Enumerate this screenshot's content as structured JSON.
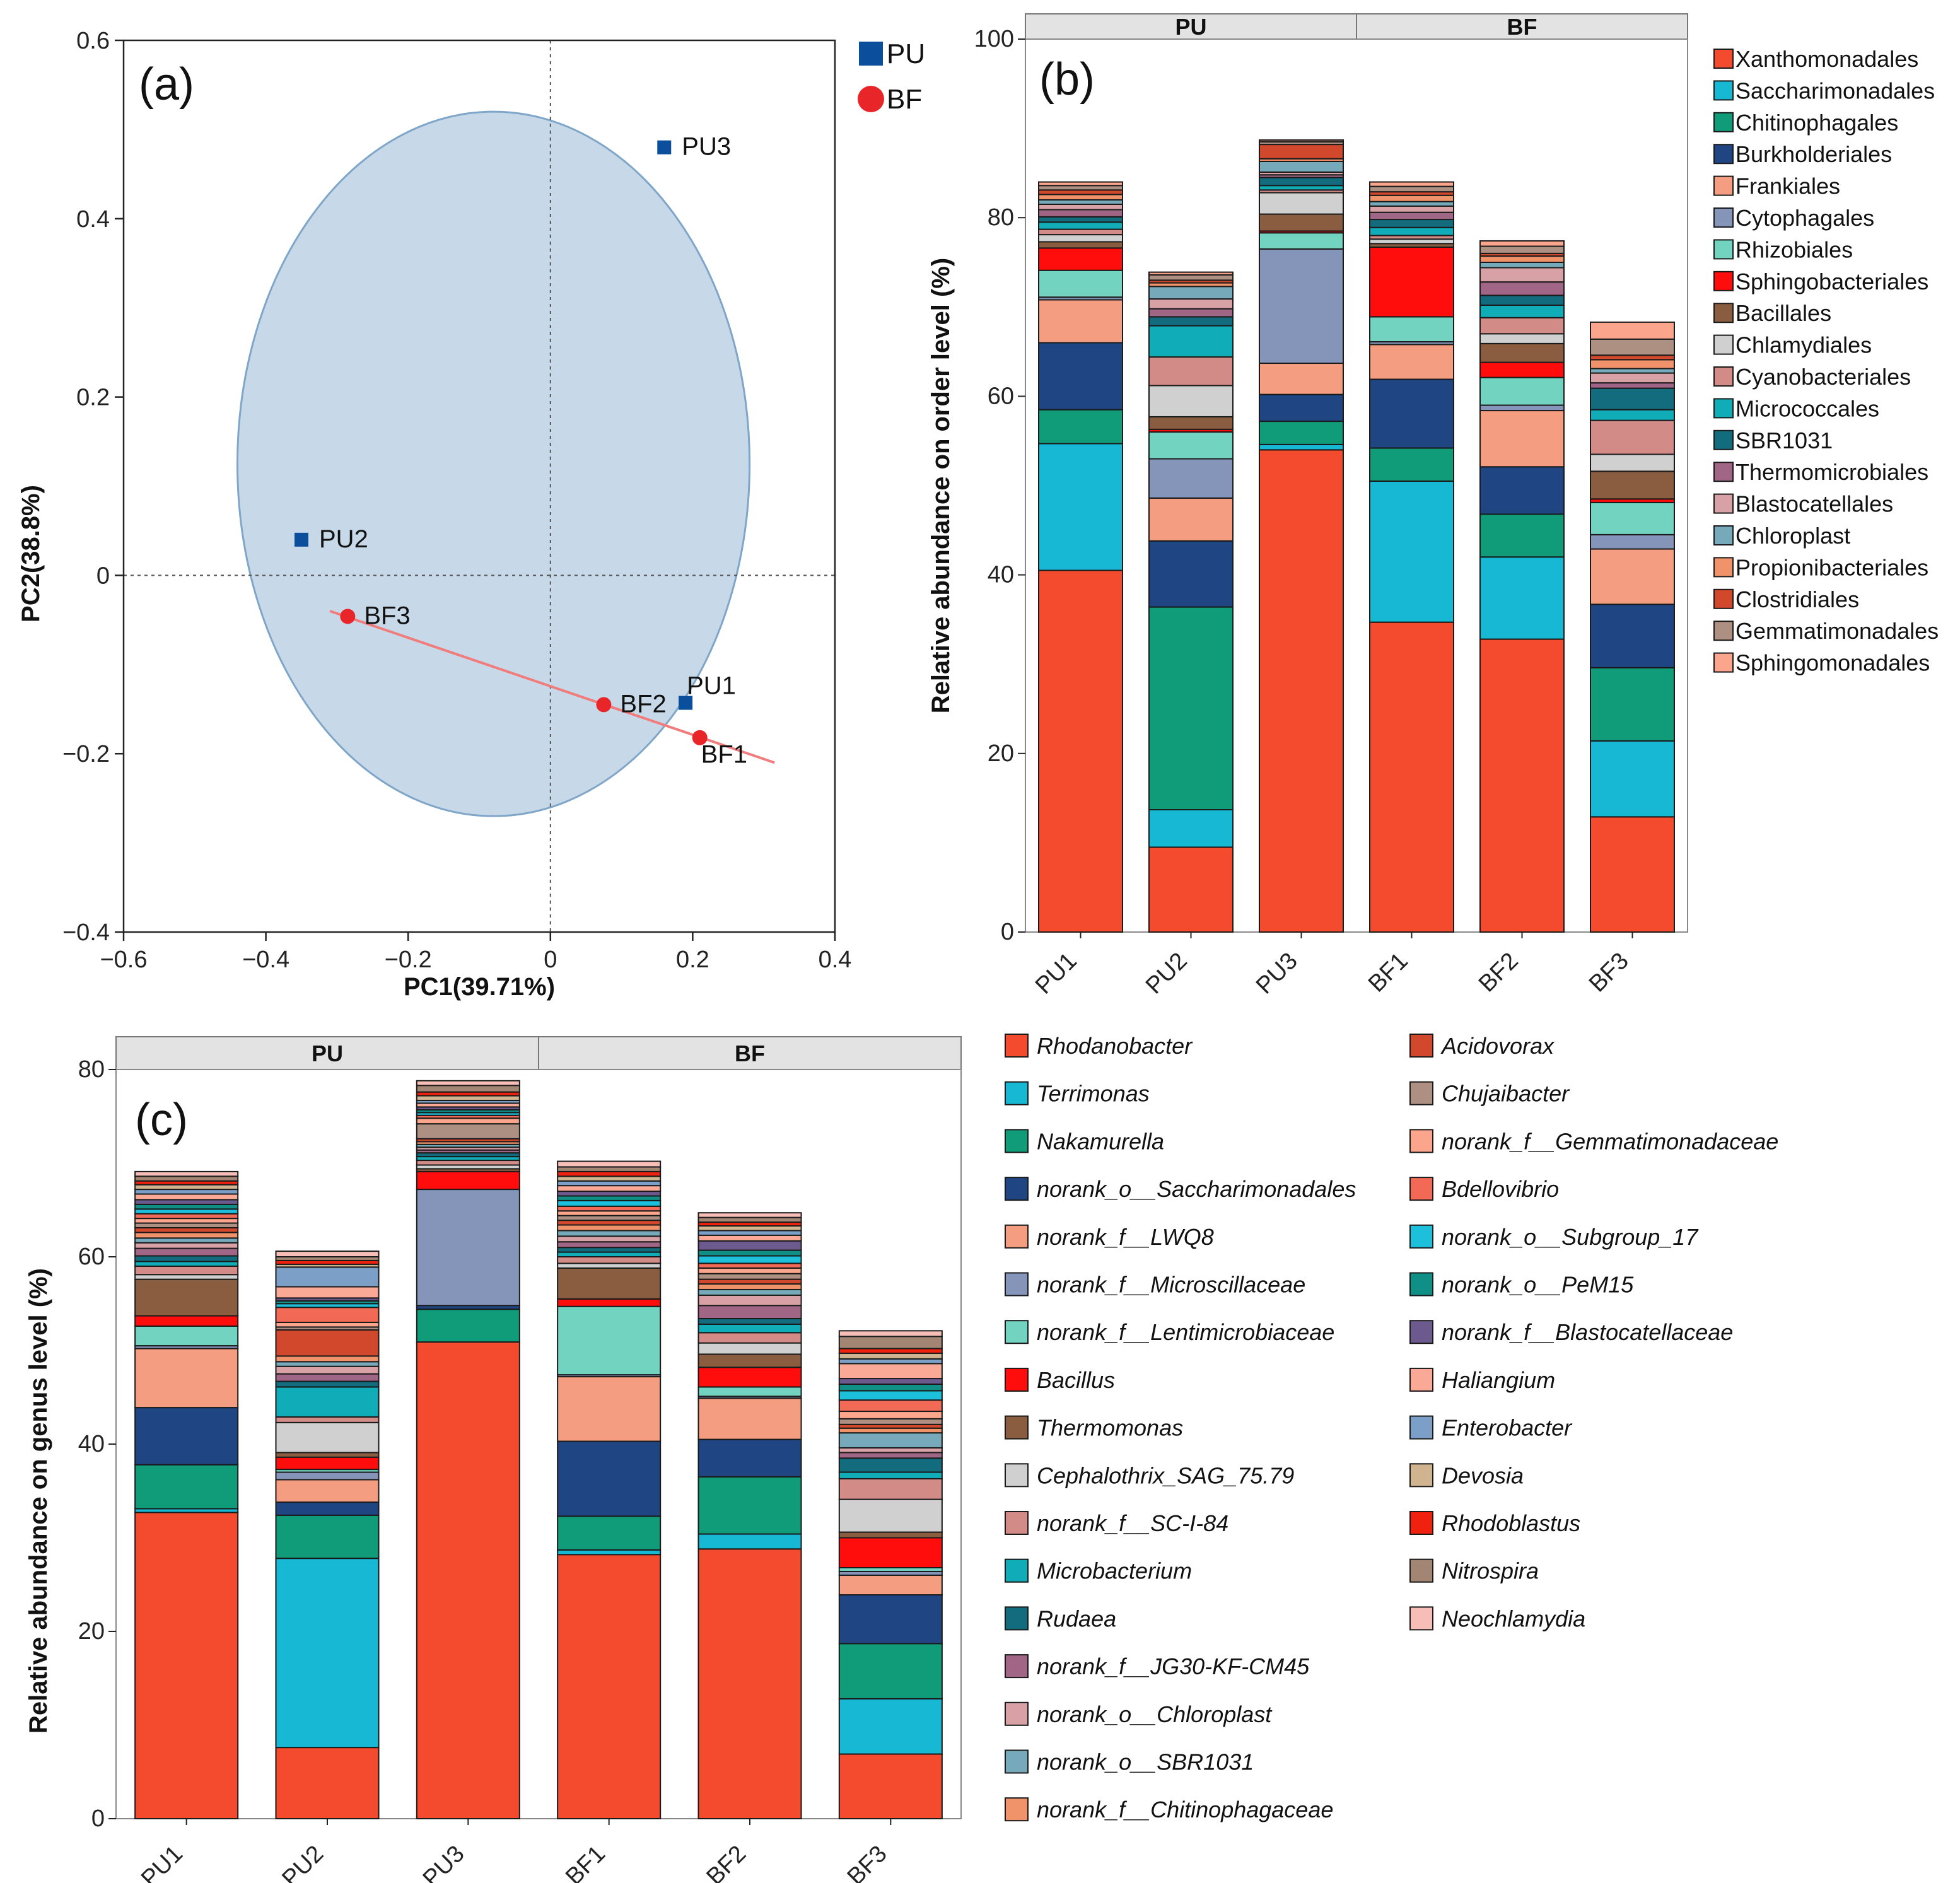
{
  "chart_data": [
    {
      "id": "a",
      "type": "scatter",
      "panel_label": "(a)",
      "xlabel": "PC1(39.71%)",
      "ylabel": "PC2(38.8%)",
      "xlim": [
        -0.6,
        0.4
      ],
      "ylim": [
        -0.4,
        0.6
      ],
      "xticks": [
        -0.6,
        -0.4,
        -0.2,
        0,
        0.2,
        0.4
      ],
      "yticks": [
        -0.4,
        -0.2,
        0,
        0.2,
        0.4,
        0.6
      ],
      "xtick_labels": [
        "−0.6",
        "−0.4",
        "−0.2",
        "0",
        "0.2",
        "0.4"
      ],
      "ytick_labels": [
        "−0.4",
        "−0.2",
        "0",
        "0.2",
        "0.4",
        "0.6"
      ],
      "groups": [
        {
          "name": "PU",
          "marker": "square",
          "color": "#0B4F9C",
          "points": [
            {
              "label": "PU1",
              "x": 0.19,
              "y": -0.143
            },
            {
              "label": "PU2",
              "x": -0.35,
              "y": 0.04
            },
            {
              "label": "PU3",
              "x": 0.16,
              "y": 0.48
            }
          ]
        },
        {
          "name": "BF",
          "marker": "circle",
          "color": "#E8262A",
          "points": [
            {
              "label": "BF1",
              "x": 0.21,
              "y": -0.182
            },
            {
              "label": "BF2",
              "x": 0.075,
              "y": -0.145
            },
            {
              "label": "BF3",
              "x": -0.285,
              "y": -0.046
            }
          ]
        }
      ],
      "ellipse": {
        "group": "PU",
        "center": [
          -0.08,
          0.125
        ],
        "rx": 0.36,
        "ry": 0.395,
        "fill": "#C7D9E8",
        "stroke": "#7FA6C8"
      },
      "line": {
        "group": "BF",
        "x": [
          -0.31,
          0.315
        ],
        "y": [
          -0.04,
          -0.21
        ],
        "color": "#F07C7C"
      }
    },
    {
      "id": "b",
      "type": "bar",
      "stacked": true,
      "panel_label": "(b)",
      "ylabel": "Relative abundance on order level (%)",
      "ylim": [
        0,
        100
      ],
      "yticks": [
        0,
        20,
        40,
        60,
        80,
        100
      ],
      "categories": [
        "PU1",
        "PU2",
        "PU3",
        "BF1",
        "BF2",
        "BF3"
      ],
      "facets": [
        {
          "label": "PU",
          "categories": [
            "PU1",
            "PU2",
            "PU3"
          ]
        },
        {
          "label": "BF",
          "categories": [
            "BF1",
            "BF2",
            "BF3"
          ]
        }
      ],
      "series": [
        {
          "name": "Xanthomonadales",
          "color": "#F44A2D",
          "values": [
            40.5,
            9.5,
            54.0,
            34.7,
            32.8,
            12.9
          ]
        },
        {
          "name": "Saccharimonadales",
          "color": "#16B8D4",
          "values": [
            14.2,
            4.2,
            0.6,
            15.8,
            9.2,
            8.5
          ]
        },
        {
          "name": "Chitinophagales",
          "color": "#119C79",
          "values": [
            3.8,
            22.7,
            2.6,
            3.7,
            4.8,
            8.2
          ]
        },
        {
          "name": "Burkholderiales",
          "color": "#1F4582",
          "values": [
            7.5,
            7.4,
            3.0,
            7.7,
            5.3,
            7.1
          ]
        },
        {
          "name": "Frankiales",
          "color": "#F59D80",
          "values": [
            4.8,
            4.8,
            3.5,
            3.9,
            6.3,
            6.2
          ]
        },
        {
          "name": "Cytophagales",
          "color": "#8495B9",
          "values": [
            0.3,
            4.4,
            12.8,
            0.3,
            0.6,
            1.6
          ]
        },
        {
          "name": "Rhizobiales",
          "color": "#73D3C1",
          "values": [
            3.0,
            3.0,
            1.8,
            2.8,
            3.1,
            3.6
          ]
        },
        {
          "name": "Sphingobacteriales",
          "color": "#FF0C0C",
          "values": [
            2.5,
            0.3,
            0.2,
            7.8,
            1.7,
            0.4
          ]
        },
        {
          "name": "Bacillales",
          "color": "#8A5D40",
          "values": [
            0.7,
            1.4,
            1.9,
            0.4,
            2.1,
            3.1
          ]
        },
        {
          "name": "Chlamydiales",
          "color": "#D0D0D0",
          "values": [
            0.8,
            3.5,
            2.4,
            0.5,
            1.1,
            1.9
          ]
        },
        {
          "name": "Cyanobacteriales",
          "color": "#D28B86",
          "values": [
            0.6,
            3.2,
            0.3,
            0.4,
            1.8,
            3.8
          ]
        },
        {
          "name": "Micrococcales",
          "color": "#10ADB8",
          "values": [
            0.8,
            3.5,
            0.5,
            0.9,
            1.4,
            1.2
          ]
        },
        {
          "name": "SBR1031",
          "color": "#136B7E",
          "values": [
            0.6,
            1.0,
            0.9,
            0.9,
            1.1,
            2.4
          ]
        },
        {
          "name": "Thermomicrobiales",
          "color": "#A16585",
          "values": [
            0.8,
            0.9,
            0.3,
            0.8,
            1.5,
            0.6
          ]
        },
        {
          "name": "Blastocatellales",
          "color": "#D7A1A6",
          "values": [
            0.6,
            1.1,
            0.3,
            0.7,
            1.6,
            1.1
          ]
        },
        {
          "name": "Chloroplast",
          "color": "#76A9B9",
          "values": [
            0.5,
            1.4,
            1.2,
            0.5,
            0.6,
            0.5
          ]
        },
        {
          "name": "Propionibacteriales",
          "color": "#F0926A",
          "values": [
            0.6,
            0.4,
            0.3,
            0.7,
            0.7,
            1.0
          ]
        },
        {
          "name": "Clostridiales",
          "color": "#D1482D",
          "values": [
            0.5,
            0.3,
            1.6,
            0.4,
            0.3,
            0.5
          ]
        },
        {
          "name": "Gemmatimonadales",
          "color": "#AD9082",
          "values": [
            0.5,
            0.6,
            0.3,
            0.6,
            0.8,
            1.8
          ]
        },
        {
          "name": "Sphingomonadales",
          "color": "#FBA58C",
          "values": [
            0.4,
            0.3,
            0.2,
            0.5,
            0.6,
            1.9
          ]
        }
      ]
    },
    {
      "id": "c",
      "type": "bar",
      "stacked": true,
      "panel_label": "(c)",
      "ylabel": "Relative abundance on genus level (%)",
      "ylim": [
        0,
        80
      ],
      "yticks": [
        0,
        20,
        40,
        60,
        80
      ],
      "categories": [
        "PU1",
        "PU2",
        "PU3",
        "BF1",
        "BF2",
        "BF3"
      ],
      "facets": [
        {
          "label": "PU",
          "categories": [
            "PU1",
            "PU2",
            "PU3"
          ]
        },
        {
          "label": "BF",
          "categories": [
            "BF1",
            "BF2",
            "BF3"
          ]
        }
      ],
      "series": [
        {
          "name": "Rhodanobacter",
          "color": "#F44A2D",
          "values": [
            32.7,
            7.6,
            50.9,
            28.2,
            28.8,
            6.9
          ]
        },
        {
          "name": "Terrimonas",
          "color": "#16B8D4",
          "values": [
            0.4,
            20.2,
            0.0,
            0.5,
            1.6,
            5.9
          ]
        },
        {
          "name": "Nakamurella",
          "color": "#119C79",
          "values": [
            4.7,
            4.6,
            3.5,
            3.6,
            6.1,
            5.9
          ]
        },
        {
          "name": "norank_o__Saccharimonadales",
          "color": "#1F4582",
          "values": [
            6.1,
            1.4,
            0.4,
            8.0,
            4.0,
            5.2
          ]
        },
        {
          "name": "norank_f__LWQ8",
          "color": "#F59D80",
          "values": [
            6.3,
            2.4,
            0.0,
            6.9,
            4.4,
            2.1
          ]
        },
        {
          "name": "norank_f__Microscillaceae",
          "color": "#8495B9",
          "values": [
            0.3,
            0.8,
            12.4,
            0.2,
            0.2,
            0.4
          ]
        },
        {
          "name": "norank_f__Lentimicrobiaceae",
          "color": "#73D3C1",
          "values": [
            2.1,
            0.3,
            0.0,
            7.3,
            1.0,
            0.4
          ]
        },
        {
          "name": "Bacillus",
          "color": "#FF0C0C",
          "values": [
            1.1,
            1.3,
            1.9,
            0.8,
            2.1,
            3.2
          ]
        },
        {
          "name": "Thermomonas",
          "color": "#8A5D40",
          "values": [
            3.9,
            0.5,
            0.3,
            3.3,
            1.4,
            0.6
          ]
        },
        {
          "name": "Cephalothrix_SAG_75.79",
          "color": "#D0D0D0",
          "values": [
            0.5,
            3.2,
            0.4,
            0.5,
            1.2,
            3.5
          ]
        },
        {
          "name": "norank_f__SC-I-84",
          "color": "#D28B86",
          "values": [
            0.9,
            0.6,
            0.5,
            0.7,
            1.1,
            2.2
          ]
        },
        {
          "name": "Microbacterium",
          "color": "#10ADB8",
          "values": [
            0.5,
            3.2,
            0.4,
            0.5,
            0.9,
            0.7
          ]
        },
        {
          "name": "Rudaea",
          "color": "#136B7E",
          "values": [
            0.6,
            0.6,
            0.4,
            0.5,
            0.6,
            1.5
          ]
        },
        {
          "name": "norank_f__JG30-KF-CM45",
          "color": "#A16585",
          "values": [
            0.8,
            0.8,
            0.3,
            0.6,
            1.4,
            0.6
          ]
        },
        {
          "name": "norank_o__Chloroplast",
          "color": "#D7A1A6",
          "values": [
            0.6,
            0.8,
            0.3,
            0.6,
            1.1,
            0.5
          ]
        },
        {
          "name": "norank_o__SBR1031",
          "color": "#76A9B9",
          "values": [
            0.5,
            0.5,
            0.3,
            0.6,
            0.6,
            1.6
          ]
        },
        {
          "name": "norank_f__Chitinophagaceae",
          "color": "#F0926A",
          "values": [
            0.6,
            0.6,
            0.3,
            0.6,
            0.6,
            0.5
          ]
        },
        {
          "name": "Acidovorax",
          "color": "#D1482D",
          "values": [
            0.5,
            2.8,
            0.3,
            0.5,
            0.5,
            0.4
          ]
        },
        {
          "name": "Chujaibacter",
          "color": "#AD9082",
          "values": [
            0.5,
            0.3,
            1.6,
            0.5,
            0.6,
            0.6
          ]
        },
        {
          "name": "norank_f__Gemmatimonadaceae",
          "color": "#FBA58C",
          "values": [
            0.5,
            0.5,
            0.6,
            0.5,
            0.6,
            0.8
          ]
        },
        {
          "name": "Bdellovibrio",
          "color": "#F26A55",
          "values": [
            0.5,
            1.6,
            0.3,
            0.5,
            0.5,
            1.2
          ]
        },
        {
          "name": "norank_o__Subgroup_17",
          "color": "#1CC0DB",
          "values": [
            0.5,
            0.4,
            0.3,
            0.6,
            0.8,
            1.0
          ]
        },
        {
          "name": "norank_o__PeM15",
          "color": "#0F8F86",
          "values": [
            0.5,
            0.3,
            0.3,
            0.5,
            0.6,
            0.7
          ]
        },
        {
          "name": "norank_f__Blastocatellaceae",
          "color": "#6C5A8E",
          "values": [
            0.5,
            0.3,
            0.3,
            0.5,
            1.0,
            0.6
          ]
        },
        {
          "name": "Haliangium",
          "color": "#F9A995",
          "values": [
            0.6,
            1.2,
            0.4,
            0.6,
            0.6,
            1.6
          ]
        },
        {
          "name": "Enterobacter",
          "color": "#7C9FC7",
          "values": [
            0.5,
            2.1,
            0.3,
            0.5,
            0.5,
            0.5
          ]
        },
        {
          "name": "Devosia",
          "color": "#CFB48F",
          "values": [
            0.5,
            0.3,
            0.5,
            0.5,
            0.5,
            0.6
          ]
        },
        {
          "name": "Rhodoblastus",
          "color": "#F0220F",
          "values": [
            0.4,
            0.4,
            0.4,
            0.5,
            0.4,
            0.5
          ]
        },
        {
          "name": "Nitrospira",
          "color": "#A38573",
          "values": [
            0.5,
            0.4,
            0.7,
            0.5,
            0.5,
            1.3
          ]
        },
        {
          "name": "Neochlamydia",
          "color": "#F6BEB6",
          "values": [
            0.5,
            0.6,
            0.5,
            0.6,
            0.5,
            0.6
          ]
        }
      ]
    }
  ]
}
